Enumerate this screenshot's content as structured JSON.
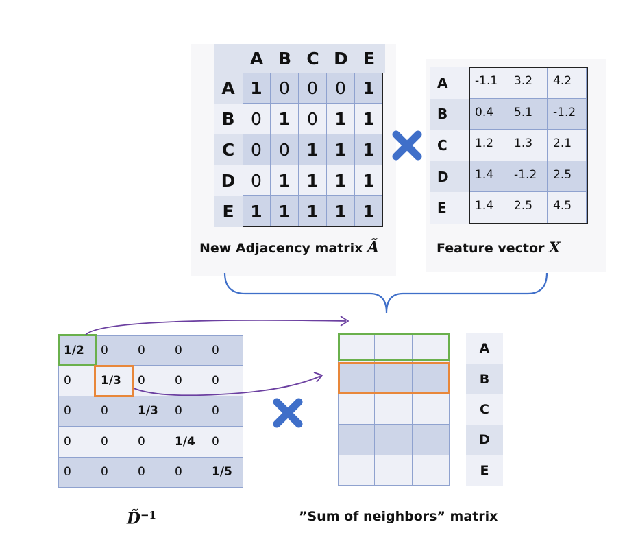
{
  "adjacency": {
    "col_headers": [
      "A",
      "B",
      "C",
      "D",
      "E"
    ],
    "row_headers": [
      "A",
      "B",
      "C",
      "D",
      "E"
    ],
    "rows": [
      [
        "1",
        "0",
        "0",
        "0",
        "1"
      ],
      [
        "0",
        "1",
        "0",
        "1",
        "1"
      ],
      [
        "0",
        "0",
        "1",
        "1",
        "1"
      ],
      [
        "0",
        "1",
        "1",
        "1",
        "1"
      ],
      [
        "1",
        "1",
        "1",
        "1",
        "1"
      ]
    ],
    "caption": "New Adjacency matrix",
    "caption_symbol": "Ã"
  },
  "feature": {
    "row_headers": [
      "A",
      "B",
      "C",
      "D",
      "E"
    ],
    "rows": [
      [
        "-1.1",
        "3.2",
        "4.2"
      ],
      [
        "0.4",
        "5.1",
        "-1.2"
      ],
      [
        "1.2",
        "1.3",
        "2.1"
      ],
      [
        "1.4",
        "-1.2",
        "2.5"
      ],
      [
        "1.4",
        "2.5",
        "4.5"
      ]
    ],
    "caption": "Feature vector",
    "caption_symbol": "X"
  },
  "degree_inverse": {
    "rows": [
      [
        "1/2",
        "0",
        "0",
        "0",
        "0"
      ],
      [
        "0",
        "1/3",
        "0",
        "0",
        "0"
      ],
      [
        "0",
        "0",
        "1/3",
        "0",
        "0"
      ],
      [
        "0",
        "0",
        "0",
        "1/4",
        "0"
      ],
      [
        "0",
        "0",
        "0",
        "0",
        "1/5"
      ]
    ],
    "caption_base": "D̃",
    "caption_sup": "−1"
  },
  "sum_matrix": {
    "row_labels": [
      "A",
      "B",
      "C",
      "D",
      "E"
    ],
    "caption": "”Sum of neighbors” matrix"
  },
  "colors": {
    "green_highlight": "#6ab04c",
    "orange_highlight": "#e8873a",
    "arrow": "#6b3fa0",
    "multiply": "#3f6fc9",
    "brace": "#3f6fc9"
  }
}
